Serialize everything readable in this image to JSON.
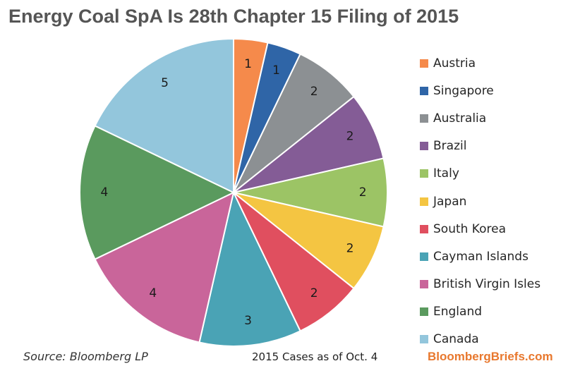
{
  "title": "Energy Coal SpA Is 28th Chapter 15 Filing of 2015",
  "source": "Source: Bloomberg LP",
  "note": "2015 Cases as of Oct. 4",
  "brand": "BloombergBriefs.com",
  "chart_data": {
    "type": "pie",
    "title": "Energy Coal SpA Is 28th Chapter 15 Filing of 2015",
    "categories": [
      "Austria",
      "Singapore",
      "Australia",
      "Brazil",
      "Italy",
      "Japan",
      "South Korea",
      "Cayman Islands",
      "British Virgin Isles",
      "England",
      "Canada"
    ],
    "values": [
      1,
      1,
      2,
      2,
      2,
      2,
      2,
      3,
      4,
      4,
      5
    ],
    "colors": [
      "#f58a4b",
      "#2f65a7",
      "#8c9093",
      "#845c96",
      "#9cc465",
      "#f4c542",
      "#e04f5f",
      "#4aa3b5",
      "#c9659a",
      "#5a9a5e",
      "#93c6dc"
    ],
    "legend": "right",
    "data_labels": true
  }
}
